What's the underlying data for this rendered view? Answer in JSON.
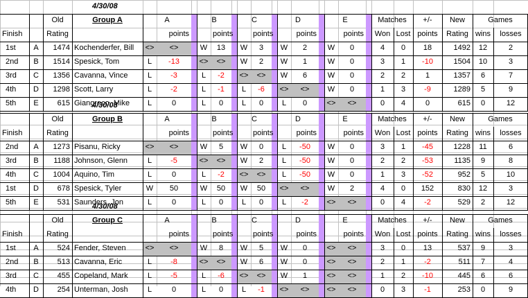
{
  "headers": {
    "finish": "Finish",
    "old": "Old",
    "rating": "Rating",
    "cols": [
      "A",
      "B",
      "C",
      "D",
      "E"
    ],
    "points": "points",
    "matches": "Matches",
    "won": "Won",
    "lost": "Lost",
    "plusminus": "+/-",
    "pm_points": "points",
    "new": "New",
    "new_rating": "Rating",
    "games": "Games",
    "wins": "wins",
    "losses": "losses"
  },
  "groups": [
    {
      "date": "4/30/08",
      "name": "Group A",
      "show_header_row": false,
      "rows": [
        {
          "finish": "1st",
          "letter": "A",
          "old": "1474",
          "player": "Kochenderfer, Bill",
          "cells": [
            [
              "<>",
              "<>"
            ],
            [
              "W",
              "13"
            ],
            [
              "W",
              "3"
            ],
            [
              "W",
              "2"
            ],
            [
              "W",
              "0"
            ]
          ],
          "won": "4",
          "lost": "0",
          "pm": "18",
          "new": "1492",
          "wins": "12",
          "losses": "2"
        },
        {
          "finish": "2nd",
          "letter": "B",
          "old": "1514",
          "player": "Spesick, Tom",
          "cells": [
            [
              "L",
              "-13"
            ],
            [
              "<>",
              "<>"
            ],
            [
              "W",
              "2"
            ],
            [
              "W",
              "1"
            ],
            [
              "W",
              "0"
            ]
          ],
          "won": "3",
          "lost": "1",
          "pm": "-10",
          "new": "1504",
          "wins": "10",
          "losses": "3"
        },
        {
          "finish": "3rd",
          "letter": "C",
          "old": "1356",
          "player": "Cavanna, Vince",
          "cells": [
            [
              "L",
              "-3"
            ],
            [
              "L",
              "-2"
            ],
            [
              "<>",
              "<>"
            ],
            [
              "W",
              "6"
            ],
            [
              "W",
              "0"
            ]
          ],
          "won": "2",
          "lost": "2",
          "pm": "1",
          "new": "1357",
          "wins": "6",
          "losses": "7"
        },
        {
          "finish": "4th",
          "letter": "D",
          "old": "1298",
          "player": "Scott, Larry",
          "cells": [
            [
              "L",
              "-2"
            ],
            [
              "L",
              "-1"
            ],
            [
              "L",
              "-6"
            ],
            [
              "<>",
              "<>"
            ],
            [
              "W",
              "0"
            ]
          ],
          "won": "1",
          "lost": "3",
          "pm": "-9",
          "new": "1289",
          "wins": "5",
          "losses": "9"
        },
        {
          "finish": "5th",
          "letter": "E",
          "old": "615",
          "player": "Giangreco, Mike",
          "cells": [
            [
              "L",
              "0"
            ],
            [
              "L",
              "0"
            ],
            [
              "L",
              "0"
            ],
            [
              "L",
              "0"
            ],
            [
              "<>",
              "<>"
            ]
          ],
          "won": "0",
          "lost": "4",
          "pm": "0",
          "new": "615",
          "wins": "0",
          "losses": "12"
        }
      ]
    },
    {
      "date": "4/30/08",
      "name": "Group B",
      "rows": [
        {
          "finish": "2nd",
          "letter": "A",
          "old": "1273",
          "player": "Pisanu, Ricky",
          "cells": [
            [
              "<>",
              "<>"
            ],
            [
              "W",
              "5"
            ],
            [
              "W",
              "0"
            ],
            [
              "L",
              "-50"
            ],
            [
              "W",
              "0"
            ]
          ],
          "won": "3",
          "lost": "1",
          "pm": "-45",
          "new": "1228",
          "wins": "11",
          "losses": "6"
        },
        {
          "finish": "3rd",
          "letter": "B",
          "old": "1188",
          "player": "Johnson, Glenn",
          "cells": [
            [
              "L",
              "-5"
            ],
            [
              "<>",
              "<>"
            ],
            [
              "W",
              "2"
            ],
            [
              "L",
              "-50"
            ],
            [
              "W",
              "0"
            ]
          ],
          "won": "2",
          "lost": "2",
          "pm": "-53",
          "new": "1135",
          "wins": "9",
          "losses": "8"
        },
        {
          "finish": "4th",
          "letter": "C",
          "old": "1004",
          "player": "Aquino, Tim",
          "cells": [
            [
              "L",
              "0"
            ],
            [
              "L",
              "-2"
            ],
            [
              "<>",
              "<>"
            ],
            [
              "L",
              "-50"
            ],
            [
              "W",
              "0"
            ]
          ],
          "won": "1",
          "lost": "3",
          "pm": "-52",
          "new": "952",
          "wins": "5",
          "losses": "10"
        },
        {
          "finish": "1st",
          "letter": "D",
          "old": "678",
          "player": "Spesick, Tyler",
          "cells": [
            [
              "W",
              "50"
            ],
            [
              "W",
              "50"
            ],
            [
              "W",
              "50"
            ],
            [
              "<>",
              "<>"
            ],
            [
              "W",
              "2"
            ]
          ],
          "won": "4",
          "lost": "0",
          "pm": "152",
          "new": "830",
          "wins": "12",
          "losses": "3"
        },
        {
          "finish": "5th",
          "letter": "E",
          "old": "531",
          "player": "Saunders, Jon",
          "cells": [
            [
              "L",
              "0"
            ],
            [
              "L",
              "0"
            ],
            [
              "L",
              "0"
            ],
            [
              "L",
              "-2"
            ],
            [
              "<>",
              "<>"
            ]
          ],
          "won": "0",
          "lost": "4",
          "pm": "-2",
          "new": "529",
          "wins": "2",
          "losses": "12"
        }
      ]
    },
    {
      "date": "4/30/08",
      "name": "Group C",
      "rows": [
        {
          "finish": "1st",
          "letter": "A",
          "old": "524",
          "player": "Fender, Steven",
          "cells": [
            [
              "<>",
              "<>"
            ],
            [
              "W",
              "8"
            ],
            [
              "W",
              "5"
            ],
            [
              "W",
              "0"
            ],
            [
              "<>",
              "<>"
            ]
          ],
          "won": "3",
          "lost": "0",
          "pm": "13",
          "new": "537",
          "wins": "9",
          "losses": "3"
        },
        {
          "finish": "2nd",
          "letter": "B",
          "old": "513",
          "player": "Cavanna, Eric",
          "cells": [
            [
              "L",
              "-8"
            ],
            [
              "<>",
              "<>"
            ],
            [
              "W",
              "6"
            ],
            [
              "W",
              "0"
            ],
            [
              "<>",
              "<>"
            ]
          ],
          "won": "2",
          "lost": "1",
          "pm": "-2",
          "new": "511",
          "wins": "7",
          "losses": "4"
        },
        {
          "finish": "3rd",
          "letter": "C",
          "old": "455",
          "player": "Copeland, Mark",
          "cells": [
            [
              "L",
              "-5"
            ],
            [
              "L",
              "-6"
            ],
            [
              "<>",
              "<>"
            ],
            [
              "W",
              "1"
            ],
            [
              "<>",
              "<>"
            ]
          ],
          "won": "1",
          "lost": "2",
          "pm": "-10",
          "new": "445",
          "wins": "6",
          "losses": "6"
        },
        {
          "finish": "4th",
          "letter": "D",
          "old": "254",
          "player": "Unterman, Josh",
          "cells": [
            [
              "L",
              "0"
            ],
            [
              "L",
              "0"
            ],
            [
              "L",
              "-1"
            ],
            [
              "<>",
              "<>"
            ],
            [
              "<>",
              "<>"
            ]
          ],
          "won": "0",
          "lost": "3",
          "pm": "-1",
          "new": "253",
          "wins": "0",
          "losses": "9"
        }
      ]
    }
  ],
  "colors": {
    "gridline": "#c0c0c0",
    "purple_divider": "#cc99ff",
    "gray_fill": "#c0c0c0",
    "negative": "#ff0000"
  }
}
